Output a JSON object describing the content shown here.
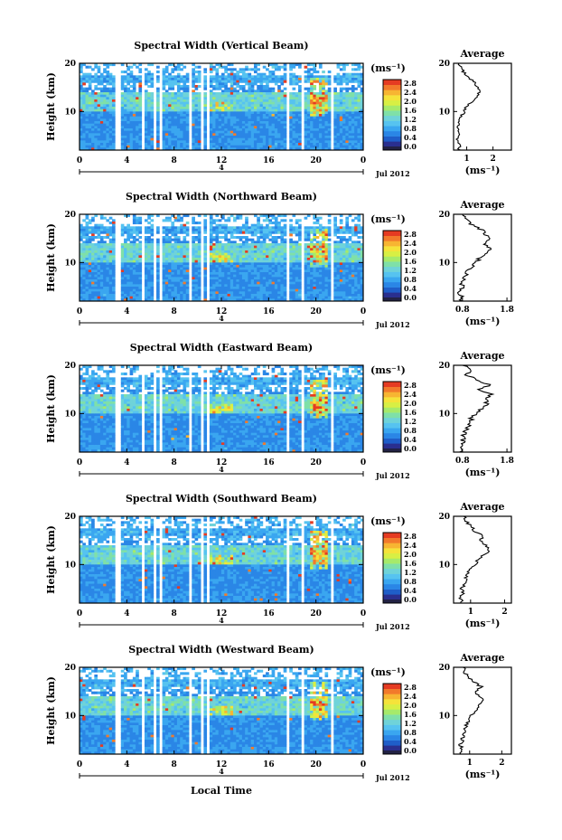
{
  "figure": {
    "xlabel": "Local Time",
    "date_label": "Jul 2012",
    "date_tick": "4",
    "height_label": "Height (km)",
    "unit_label": "(ms⁻¹)",
    "average_title": "Average"
  },
  "colors": {
    "scale": [
      "#2a2f8f",
      "#1f5ec9",
      "#2a86e6",
      "#3aa6f0",
      "#56c3f0",
      "#6fd3d9",
      "#7fe0a8",
      "#a6ea6a",
      "#d8ef44",
      "#f5e33a",
      "#f7b532",
      "#f27a2b",
      "#e53b22"
    ],
    "bottom": "#222244",
    "mid": "#8a8a8a"
  },
  "chart_data": [
    {
      "type": "heatmap",
      "title": "Spectral Width (Vertical Beam)",
      "ylabel": "Height (km)",
      "xlabel": "",
      "x_ticks": [
        "0",
        "4",
        "8",
        "12",
        "16",
        "20",
        "0"
      ],
      "y_ticks": [
        "10",
        "20"
      ],
      "xlim": [
        0,
        24
      ],
      "ylim": [
        2,
        20
      ],
      "colorbar": {
        "label": "(ms⁻¹)",
        "ticks": [
          "2.8",
          "2.4",
          "2.0",
          "1.6",
          "1.2",
          "0.8",
          "0.4",
          "0.0"
        ],
        "range": [
          0,
          2.8
        ]
      },
      "date_label": "Jul 2012",
      "average": {
        "title": "Average",
        "xlabel": "(ms⁻¹)",
        "x_ticks": [
          "1",
          "2"
        ],
        "y_ticks": [
          "10",
          "20"
        ],
        "xlim": [
          0.5,
          2.7
        ],
        "profile": [
          [
            0.7,
            2
          ],
          [
            0.75,
            3
          ],
          [
            0.65,
            4
          ],
          [
            0.7,
            5
          ],
          [
            0.62,
            6
          ],
          [
            0.7,
            7
          ],
          [
            0.72,
            8
          ],
          [
            0.8,
            9
          ],
          [
            0.9,
            10
          ],
          [
            1.0,
            11
          ],
          [
            1.2,
            12
          ],
          [
            1.35,
            13
          ],
          [
            1.5,
            14
          ],
          [
            1.4,
            15
          ],
          [
            1.3,
            16
          ],
          [
            1.1,
            17
          ],
          [
            0.9,
            18
          ],
          [
            0.8,
            19
          ],
          [
            0.7,
            20
          ]
        ]
      }
    },
    {
      "type": "heatmap",
      "title": "Spectral Width (Northward Beam)",
      "ylabel": "Height (km)",
      "xlabel": "",
      "x_ticks": [
        "0",
        "4",
        "8",
        "12",
        "16",
        "20",
        "0"
      ],
      "y_ticks": [
        "10",
        "20"
      ],
      "xlim": [
        0,
        24
      ],
      "ylim": [
        2,
        20
      ],
      "colorbar": {
        "label": "(ms⁻¹)",
        "ticks": [
          "2.8",
          "2.4",
          "2.0",
          "1.6",
          "1.2",
          "0.8",
          "0.4",
          "0.0"
        ],
        "range": [
          0,
          2.8
        ]
      },
      "date_label": "Jul 2012",
      "average": {
        "title": "Average",
        "xlabel": "(ms⁻¹)",
        "x_ticks": [
          "0.8",
          "1.8"
        ],
        "y_ticks": [
          "10",
          "20"
        ],
        "xlim": [
          0.6,
          1.9
        ],
        "profile": [
          [
            0.75,
            2
          ],
          [
            0.8,
            3
          ],
          [
            0.72,
            4
          ],
          [
            0.8,
            5
          ],
          [
            0.78,
            6
          ],
          [
            0.85,
            7
          ],
          [
            0.9,
            8
          ],
          [
            1.0,
            9
          ],
          [
            1.1,
            10
          ],
          [
            1.2,
            11
          ],
          [
            1.35,
            12
          ],
          [
            1.4,
            13
          ],
          [
            1.3,
            14
          ],
          [
            1.45,
            15
          ],
          [
            1.3,
            16
          ],
          [
            1.2,
            17
          ],
          [
            1.0,
            18
          ],
          [
            0.9,
            19
          ],
          [
            0.8,
            20
          ]
        ]
      }
    },
    {
      "type": "heatmap",
      "title": "Spectral Width (Eastward Beam)",
      "ylabel": "Height (km)",
      "xlabel": "",
      "x_ticks": [
        "0",
        "4",
        "8",
        "12",
        "16",
        "20",
        "0"
      ],
      "y_ticks": [
        "10",
        "20"
      ],
      "xlim": [
        0,
        24
      ],
      "ylim": [
        2,
        20
      ],
      "colorbar": {
        "label": "(ms⁻¹)",
        "ticks": [
          "2.8",
          "2.4",
          "2.0",
          "1.6",
          "1.2",
          "0.8",
          "0.4",
          "0.0"
        ],
        "range": [
          0,
          2.8
        ]
      },
      "date_label": "Jul 2012",
      "average": {
        "title": "Average",
        "xlabel": "(ms⁻¹)",
        "x_ticks": [
          "0.8",
          "1.8"
        ],
        "y_ticks": [
          "10",
          "20"
        ],
        "xlim": [
          0.6,
          1.9
        ],
        "profile": [
          [
            0.75,
            2
          ],
          [
            0.78,
            3
          ],
          [
            0.8,
            4
          ],
          [
            0.82,
            5
          ],
          [
            0.85,
            6
          ],
          [
            0.9,
            7
          ],
          [
            0.95,
            8
          ],
          [
            1.0,
            9
          ],
          [
            1.1,
            10
          ],
          [
            1.25,
            11
          ],
          [
            1.35,
            12
          ],
          [
            1.3,
            13
          ],
          [
            1.45,
            14
          ],
          [
            1.2,
            15
          ],
          [
            1.4,
            16
          ],
          [
            1.1,
            17
          ],
          [
            0.9,
            18
          ],
          [
            1.0,
            19
          ],
          [
            0.8,
            20
          ]
        ]
      }
    },
    {
      "type": "heatmap",
      "title": "Spectral Width (Southward Beam)",
      "ylabel": "Height (km)",
      "xlabel": "",
      "x_ticks": [
        "0",
        "4",
        "8",
        "12",
        "16",
        "20",
        "0"
      ],
      "y_ticks": [
        "10",
        "20"
      ],
      "xlim": [
        0,
        24
      ],
      "ylim": [
        2,
        20
      ],
      "colorbar": {
        "label": "(ms⁻¹)",
        "ticks": [
          "2.8",
          "2.4",
          "2.0",
          "1.6",
          "1.2",
          "0.8",
          "0.4",
          "0.0"
        ],
        "range": [
          0,
          2.8
        ]
      },
      "date_label": "Jul 2012",
      "average": {
        "title": "Average",
        "xlabel": "(ms⁻¹)",
        "x_ticks": [
          "1",
          "2"
        ],
        "y_ticks": [
          "10",
          "20"
        ],
        "xlim": [
          0.5,
          2.2
        ],
        "profile": [
          [
            0.75,
            2
          ],
          [
            0.7,
            3
          ],
          [
            0.8,
            4
          ],
          [
            0.75,
            5
          ],
          [
            0.8,
            6
          ],
          [
            0.85,
            7
          ],
          [
            0.9,
            8
          ],
          [
            1.0,
            9
          ],
          [
            1.1,
            10
          ],
          [
            1.25,
            11
          ],
          [
            1.4,
            12
          ],
          [
            1.55,
            13
          ],
          [
            1.45,
            14
          ],
          [
            1.3,
            15
          ],
          [
            1.35,
            16
          ],
          [
            1.1,
            17
          ],
          [
            1.0,
            18
          ],
          [
            0.85,
            19
          ],
          [
            0.8,
            20
          ]
        ]
      }
    },
    {
      "type": "heatmap",
      "title": "Spectral Width (Westward Beam)",
      "ylabel": "Height (km)",
      "xlabel": "Local Time",
      "x_ticks": [
        "0",
        "4",
        "8",
        "12",
        "16",
        "20",
        "0"
      ],
      "y_ticks": [
        "10",
        "20"
      ],
      "xlim": [
        0,
        24
      ],
      "ylim": [
        2,
        20
      ],
      "colorbar": {
        "label": "(ms⁻¹)",
        "ticks": [
          "2.8",
          "2.4",
          "2.0",
          "1.6",
          "1.2",
          "0.8",
          "0.4",
          "0.0"
        ],
        "range": [
          0,
          2.8
        ]
      },
      "date_label": "Jul 2012",
      "average": {
        "title": "Average",
        "xlabel": "(ms⁻¹)",
        "x_ticks": [
          "1",
          "2"
        ],
        "y_ticks": [
          "10",
          "20"
        ],
        "xlim": [
          0.5,
          2.3
        ],
        "profile": [
          [
            0.7,
            2
          ],
          [
            0.75,
            3
          ],
          [
            0.72,
            4
          ],
          [
            0.78,
            5
          ],
          [
            0.8,
            6
          ],
          [
            0.85,
            7
          ],
          [
            0.9,
            8
          ],
          [
            0.95,
            9
          ],
          [
            1.05,
            10
          ],
          [
            1.15,
            11
          ],
          [
            1.3,
            12
          ],
          [
            1.4,
            13
          ],
          [
            1.3,
            14
          ],
          [
            1.2,
            15
          ],
          [
            1.35,
            16
          ],
          [
            1.1,
            17
          ],
          [
            0.95,
            18
          ],
          [
            0.85,
            19
          ],
          [
            0.8,
            20
          ]
        ]
      }
    }
  ]
}
